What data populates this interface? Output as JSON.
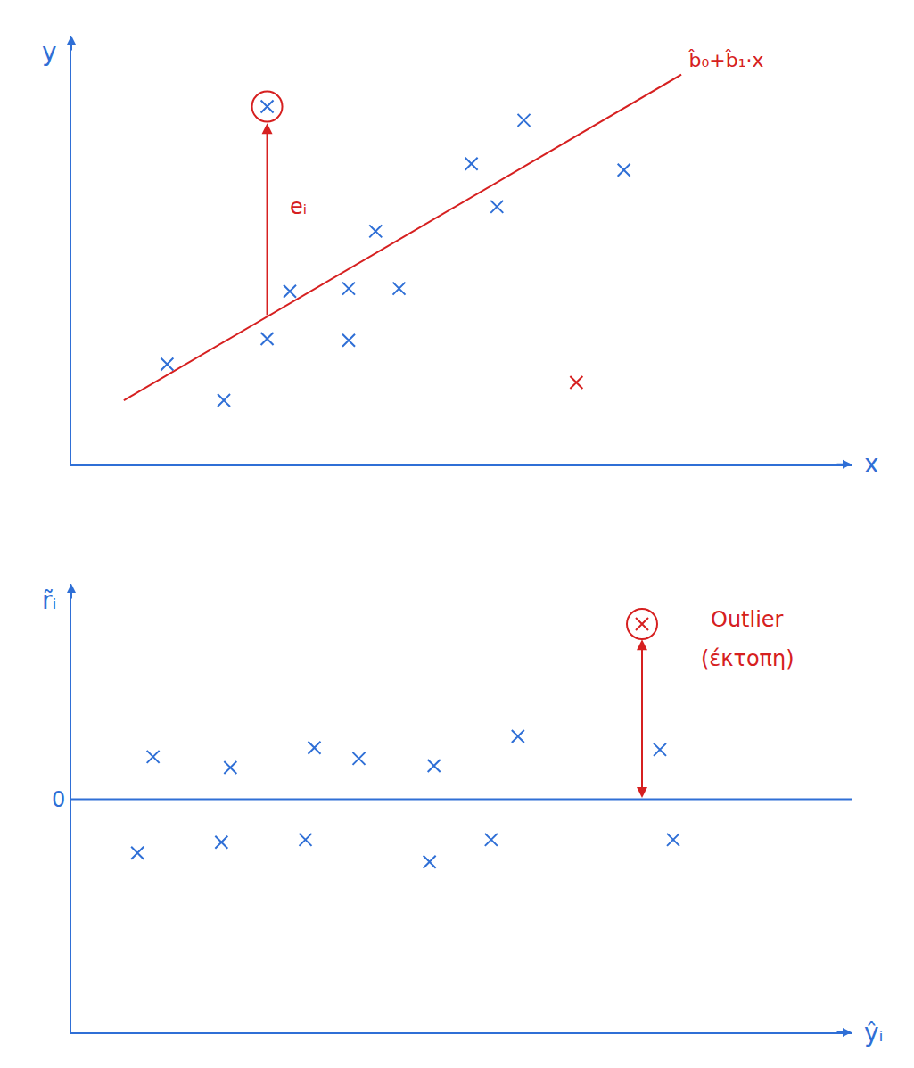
{
  "chart_data": [
    {
      "type": "scatter",
      "x_label": "x",
      "y_label": "y",
      "xlim": [
        0,
        11
      ],
      "ylim": [
        0,
        11
      ],
      "xticks": [],
      "yticks": [],
      "tick_labels": false,
      "grid": false,
      "series": [
        {
          "type": "scatter",
          "color": "#2f6fd6",
          "marker": "x",
          "x": [
            1.35,
            2.15,
            2.76,
            3.08,
            3.91,
            3.91,
            4.62,
            4.29,
            5.64,
            6.38,
            6.0,
            7.79
          ],
          "values": [
            2.57,
            1.64,
            3.22,
            4.44,
            3.18,
            4.51,
            4.51,
            5.98,
            7.71,
            8.83,
            6.61,
            7.55
          ]
        },
        {
          "type": "scatter",
          "color": "#d62020",
          "marker": "x",
          "x": [
            7.12
          ],
          "values": [
            2.1
          ]
        },
        {
          "type": "scatter",
          "color": "#2f6fd6",
          "marker": "circled",
          "x": [
            2.76
          ],
          "values": [
            9.18
          ]
        },
        {
          "type": "line",
          "color": "#d62020",
          "x": [
            0.74,
            8.6
          ],
          "values": [
            1.64,
            10.0
          ],
          "label": "b̂₀+b̂₁·x"
        }
      ],
      "annotations": [
        {
          "text": "eᵢ",
          "x": 3.2,
          "y": 6.6,
          "color": "#d62020",
          "arrow": {
            "x": 2.76,
            "from": 3.79,
            "to": 8.75,
            "both": false
          }
        }
      ]
    },
    {
      "type": "scatter",
      "x_label": "ŷᵢ",
      "y_label": "r̃ᵢ",
      "xlim": [
        0,
        10.5
      ],
      "ylim": [
        -6.5,
        6
      ],
      "xticks": [],
      "yticks": [
        0
      ],
      "tick_labels": "y",
      "grid": false,
      "series": [
        {
          "type": "scatter",
          "color": "#2f6fd6",
          "marker": "x",
          "x": [
            1.1,
            2.14,
            3.27,
            3.87,
            4.88,
            6.01,
            7.92,
            0.89,
            2.02,
            3.15,
            4.82,
            5.65,
            8.1
          ],
          "values": [
            1.18,
            0.88,
            1.43,
            1.13,
            0.93,
            1.75,
            1.38,
            -1.5,
            -1.2,
            -1.13,
            -1.75,
            -1.13,
            -1.13
          ]
        },
        {
          "type": "scatter",
          "color": "#d62020",
          "marker": "circled",
          "x": [
            7.68
          ],
          "values": [
            4.88
          ]
        },
        {
          "type": "line",
          "color": "#2f6fd6",
          "x": [
            0,
            10.5
          ],
          "values": [
            0,
            0
          ]
        }
      ],
      "annotations": [
        {
          "text": "Outlier",
          "x": 9.1,
          "y": 5.0,
          "color": "#d62020"
        },
        {
          "text": "(έκτοπη)",
          "x": 9.1,
          "y": 3.9,
          "color": "#d62020",
          "arrow": {
            "x": 7.68,
            "from": 0,
            "to": 4.45,
            "both": true
          }
        }
      ]
    }
  ]
}
